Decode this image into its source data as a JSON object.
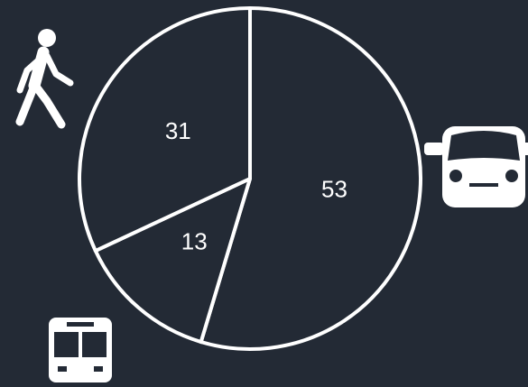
{
  "chart_data": {
    "type": "pie",
    "values": [
      53,
      13,
      31
    ],
    "color": "#232a35",
    "edge_color": "#ffffff"
  }
}
